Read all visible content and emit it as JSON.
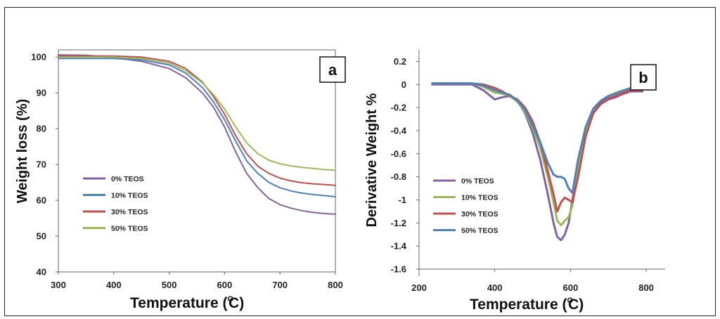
{
  "chart_data": [
    {
      "panel_label": "a",
      "type": "line",
      "xlabel": "Temperature (",
      "xlabel_super": "O",
      "xlabel_tail": "C)",
      "ylabel": "Weight loss (%)",
      "xlim": [
        300,
        800
      ],
      "ylim": [
        40,
        102
      ],
      "xticks": [
        300,
        400,
        500,
        600,
        700,
        800
      ],
      "yticks": [
        40,
        50,
        60,
        70,
        80,
        90,
        100
      ],
      "legend_position": "lower-left",
      "series": [
        {
          "name": "0% TEOS",
          "color": "#8064a2",
          "x": [
            300,
            350,
            400,
            450,
            500,
            530,
            560,
            580,
            600,
            620,
            640,
            660,
            680,
            700,
            720,
            740,
            760,
            780,
            800
          ],
          "y": [
            100.6,
            100.5,
            99.8,
            98.8,
            96.8,
            94.2,
            90.0,
            86.0,
            80.5,
            73.5,
            67.5,
            63.5,
            60.5,
            58.8,
            57.8,
            57.1,
            56.6,
            56.3,
            56.1
          ]
        },
        {
          "name": "10% TEOS",
          "color": "#4f81bd",
          "x": [
            300,
            350,
            400,
            450,
            500,
            530,
            560,
            580,
            600,
            620,
            640,
            660,
            680,
            700,
            720,
            740,
            760,
            780,
            800
          ],
          "y": [
            99.6,
            99.6,
            99.6,
            99.2,
            97.8,
            95.5,
            91.5,
            87.5,
            82.5,
            76.5,
            71.0,
            67.5,
            65.0,
            63.5,
            62.6,
            62.0,
            61.6,
            61.3,
            61.0
          ]
        },
        {
          "name": "30% TEOS",
          "color": "#c0504d",
          "x": [
            300,
            350,
            400,
            450,
            500,
            530,
            560,
            580,
            600,
            620,
            640,
            660,
            680,
            700,
            720,
            740,
            760,
            780,
            800
          ],
          "y": [
            100.3,
            100.3,
            100.3,
            100.0,
            98.8,
            96.8,
            93.0,
            89.0,
            84.0,
            78.0,
            73.0,
            69.5,
            67.5,
            66.2,
            65.4,
            64.9,
            64.6,
            64.4,
            64.2
          ]
        },
        {
          "name": "50% TEOS",
          "color": "#9bbb59",
          "x": [
            300,
            350,
            400,
            450,
            500,
            530,
            560,
            580,
            600,
            620,
            640,
            660,
            680,
            700,
            720,
            740,
            760,
            780,
            800
          ],
          "y": [
            100.0,
            100.0,
            100.0,
            99.6,
            98.3,
            96.2,
            92.8,
            89.5,
            85.5,
            80.5,
            76.0,
            73.0,
            71.2,
            70.2,
            69.6,
            69.2,
            68.9,
            68.6,
            68.4
          ]
        }
      ]
    },
    {
      "panel_label": "b",
      "type": "line",
      "xlabel": "Temperature (",
      "xlabel_super": "O",
      "xlabel_tail": "C)",
      "ylabel": "Derivative Weight %",
      "xlim": [
        200,
        850
      ],
      "ylim": [
        -1.6,
        0.3
      ],
      "xticks": [
        200,
        400,
        600,
        800
      ],
      "yticks": [
        -1.6,
        -1.4,
        -1.2,
        -1,
        -0.8,
        -0.6,
        -0.4,
        -0.2,
        0,
        0.2
      ],
      "ytick_labels": [
        "-1.6",
        "-1.4",
        "-1.2",
        "-1",
        "-0.8",
        "-0.6",
        "-0.4",
        "-0.2",
        "0",
        "0.2"
      ],
      "legend_position": "lower-left",
      "series": [
        {
          "name": "0% TEOS",
          "color": "#8064a2",
          "x": [
            235,
            300,
            340,
            370,
            400,
            420,
            440,
            460,
            480,
            500,
            520,
            540,
            555,
            565,
            575,
            585,
            595,
            605,
            620,
            640,
            660,
            680,
            700,
            720,
            740,
            760,
            790
          ],
          "y": [
            0,
            0,
            0,
            -0.05,
            -0.13,
            -0.11,
            -0.1,
            -0.14,
            -0.25,
            -0.42,
            -0.65,
            -0.95,
            -1.2,
            -1.32,
            -1.35,
            -1.3,
            -1.2,
            -1.0,
            -0.7,
            -0.42,
            -0.25,
            -0.17,
            -0.13,
            -0.11,
            -0.08,
            -0.06,
            -0.06
          ]
        },
        {
          "name": "10% TEOS",
          "color": "#9bbb59",
          "x": [
            235,
            300,
            340,
            370,
            400,
            420,
            440,
            460,
            480,
            500,
            520,
            540,
            555,
            565,
            575,
            585,
            595,
            605,
            620,
            640,
            660,
            680,
            700,
            720,
            740,
            760,
            790
          ],
          "y": [
            0.01,
            0.01,
            0.01,
            -0.02,
            -0.07,
            -0.08,
            -0.1,
            -0.15,
            -0.24,
            -0.38,
            -0.55,
            -0.8,
            -1.02,
            -1.18,
            -1.22,
            -1.18,
            -1.15,
            -1.05,
            -0.72,
            -0.42,
            -0.24,
            -0.15,
            -0.1,
            -0.07,
            -0.05,
            -0.04,
            -0.03
          ]
        },
        {
          "name": "30% TEOS",
          "color": "#c0504d",
          "x": [
            235,
            300,
            340,
            370,
            400,
            420,
            440,
            460,
            480,
            500,
            520,
            540,
            555,
            565,
            575,
            585,
            595,
            605,
            620,
            640,
            660,
            680,
            700,
            720,
            740,
            760,
            790
          ],
          "y": [
            0.01,
            0.01,
            0.01,
            0,
            -0.03,
            -0.06,
            -0.1,
            -0.13,
            -0.2,
            -0.32,
            -0.5,
            -0.75,
            -0.95,
            -1.1,
            -1.02,
            -0.98,
            -1.0,
            -1.02,
            -0.8,
            -0.45,
            -0.25,
            -0.16,
            -0.12,
            -0.1,
            -0.07,
            -0.05,
            -0.05
          ]
        },
        {
          "name": "50% TEOS",
          "color": "#4f81bd",
          "x": [
            235,
            300,
            340,
            370,
            400,
            420,
            440,
            460,
            480,
            500,
            520,
            540,
            555,
            565,
            575,
            585,
            595,
            605,
            620,
            640,
            660,
            680,
            700,
            720,
            740,
            760,
            790
          ],
          "y": [
            0.01,
            0.01,
            0.01,
            -0.01,
            -0.05,
            -0.07,
            -0.09,
            -0.14,
            -0.22,
            -0.36,
            -0.5,
            -0.68,
            -0.78,
            -0.8,
            -0.8,
            -0.82,
            -0.9,
            -0.94,
            -0.65,
            -0.37,
            -0.21,
            -0.14,
            -0.1,
            -0.08,
            -0.05,
            -0.03,
            -0.02
          ]
        }
      ]
    }
  ]
}
